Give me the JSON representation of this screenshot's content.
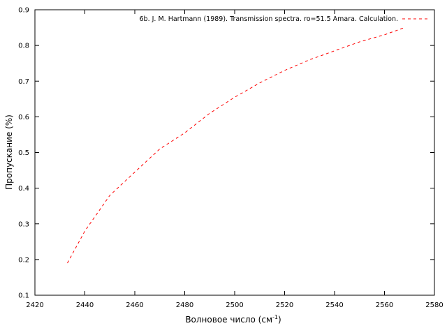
{
  "chart_data": {
    "type": "line",
    "title": "",
    "xlabel": "Волновое число (см",
    "xlabel_sup": "-1",
    "xlabel_suffix": ")",
    "ylabel": "Пропускание (%)",
    "xlim": [
      2420,
      2580
    ],
    "ylim": [
      0.1,
      0.9
    ],
    "xticks": [
      2420,
      2440,
      2460,
      2480,
      2500,
      2520,
      2540,
      2560,
      2580
    ],
    "yticks": [
      0.1,
      0.2,
      0.3,
      0.4,
      0.5,
      0.6,
      0.7,
      0.8,
      0.9
    ],
    "grid": false,
    "legend_position": "top-right",
    "series": [
      {
        "name": "6b. J. M. Hartmann (1989). Transmission spectra. ro=51.5 Amara. Calculation.",
        "color": "#ff0000",
        "line_style": "dashed",
        "x": [
          2433,
          2440,
          2450,
          2460,
          2470,
          2480,
          2490,
          2500,
          2510,
          2520,
          2530,
          2540,
          2550,
          2560,
          2568
        ],
        "y": [
          0.19,
          0.28,
          0.38,
          0.445,
          0.51,
          0.555,
          0.61,
          0.655,
          0.695,
          0.73,
          0.76,
          0.785,
          0.81,
          0.83,
          0.85
        ]
      }
    ]
  }
}
